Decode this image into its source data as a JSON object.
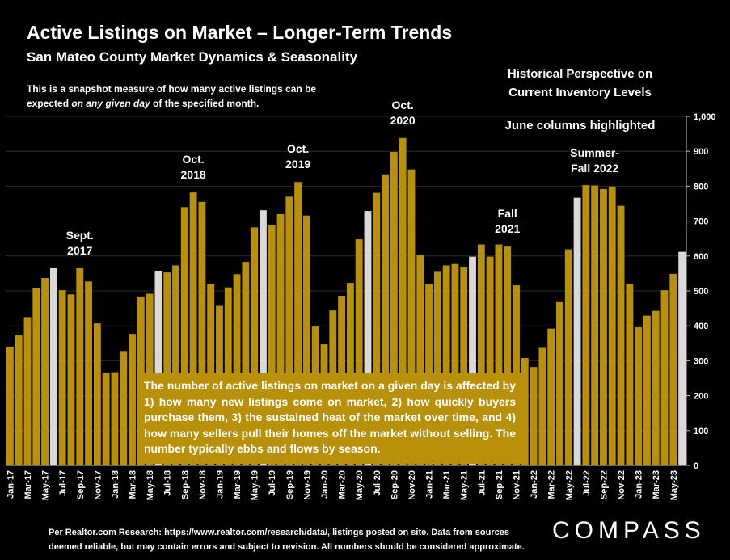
{
  "header": {
    "title": "Active Listings on Market – Longer-Term Trends",
    "subtitle": "San Mateo County Market Dynamics & Seasonality",
    "note_pre": "This is a snapshot measure of how many active listings can be expected ",
    "note_em": "on any given day",
    "note_post": " of the specified month."
  },
  "side_notes": {
    "perspective_1": "Historical Perspective on",
    "perspective_2": "Current Inventory Levels",
    "june": "June columns highlighted"
  },
  "annotations": [
    {
      "line1": "Sept.",
      "line2": "2017",
      "index": 8
    },
    {
      "line1": "Oct.",
      "line2": "2018",
      "index": 21
    },
    {
      "line1": "Oct.",
      "line2": "2019",
      "index": 33
    },
    {
      "line1": "Oct.",
      "line2": "2020",
      "index": 45
    },
    {
      "line1": "Fall",
      "line2": "2021",
      "index": 57
    },
    {
      "line1": "Summer-",
      "line2": "Fall 2022",
      "index": 67
    }
  ],
  "callout": "The number of active listings on market on a given day is affected by 1) how many new listings come on market, 2) how quickly buyers purchase them, 3) the sustained heat of the market over time, and 4) how many sellers pull their homes off the market without selling. The number typically ebbs and flows by season.",
  "footer": {
    "source_1": "Per Realtor.com Research:  https://www.realtor.com/research/data/, listings posted on site. Data from sources",
    "source_2": "deemed reliable, but may contain errors and subject to revision. All numbers should be considered approximate.",
    "logo": "COMPASS"
  },
  "colors": {
    "bar": "#b8900a",
    "highlight": "#d9d9d9",
    "background": "#000000"
  },
  "chart_data": {
    "type": "bar",
    "highlighted_month": "Jun",
    "ylim": [
      0,
      1000
    ],
    "yticks": [
      "0",
      "100",
      "200",
      "300",
      "400",
      "500",
      "600",
      "700",
      "800",
      "900",
      "1,000"
    ],
    "x_tick_labels": [
      "Jan-17",
      "Mar-17",
      "May-17",
      "Jul-17",
      "Sep-17",
      "Nov-17",
      "Jan-18",
      "Mar-18",
      "May-18",
      "Jul-18",
      "Sep-18",
      "Nov-18",
      "Jan-19",
      "Mar-19",
      "May-19",
      "Jul-19",
      "Sep-19",
      "Nov-19",
      "Jan-20",
      "Mar-20",
      "May-20",
      "Jul-20",
      "Sep-20",
      "Nov-20",
      "Jan-21",
      "Mar-21",
      "May-21",
      "Jul-21",
      "Sep-21",
      "Nov-21",
      "Jan-22",
      "Mar-22",
      "May-22",
      "Jul-22",
      "Sep-22",
      "Nov-22",
      "Jan-23",
      "Mar-23",
      "May-23"
    ],
    "categories": [
      "Jan-17",
      "Feb-17",
      "Mar-17",
      "Apr-17",
      "May-17",
      "Jun-17",
      "Jul-17",
      "Aug-17",
      "Sep-17",
      "Oct-17",
      "Nov-17",
      "Dec-17",
      "Jan-18",
      "Feb-18",
      "Mar-18",
      "Apr-18",
      "May-18",
      "Jun-18",
      "Jul-18",
      "Aug-18",
      "Sep-18",
      "Oct-18",
      "Nov-18",
      "Dec-18",
      "Jan-19",
      "Feb-19",
      "Mar-19",
      "Apr-19",
      "May-19",
      "Jun-19",
      "Jul-19",
      "Aug-19",
      "Sep-19",
      "Oct-19",
      "Nov-19",
      "Dec-19",
      "Jan-20",
      "Feb-20",
      "Mar-20",
      "Apr-20",
      "May-20",
      "Jun-20",
      "Jul-20",
      "Aug-20",
      "Sep-20",
      "Oct-20",
      "Nov-20",
      "Dec-20",
      "Jan-21",
      "Feb-21",
      "Mar-21",
      "Apr-21",
      "May-21",
      "Jun-21",
      "Jul-21",
      "Aug-21",
      "Sep-21",
      "Oct-21",
      "Nov-21",
      "Dec-21",
      "Jan-22",
      "Feb-22",
      "Mar-22",
      "Apr-22",
      "May-22",
      "Jun-22",
      "Jul-22",
      "Aug-22",
      "Sep-22",
      "Oct-22",
      "Nov-22",
      "Dec-22",
      "Jan-23",
      "Feb-23",
      "Mar-23",
      "Apr-23",
      "May-23",
      "Jun-23"
    ],
    "values": [
      340,
      373,
      425,
      507,
      537,
      565,
      502,
      490,
      565,
      527,
      407,
      265,
      267,
      328,
      377,
      484,
      492,
      558,
      553,
      573,
      740,
      782,
      755,
      519,
      457,
      510,
      548,
      583,
      682,
      731,
      688,
      720,
      770,
      812,
      716,
      398,
      347,
      444,
      486,
      523,
      648,
      729,
      781,
      834,
      898,
      938,
      848,
      602,
      520,
      557,
      573,
      577,
      567,
      598,
      633,
      598,
      633,
      627,
      516,
      308,
      282,
      337,
      392,
      468,
      619,
      767,
      803,
      802,
      792,
      799,
      744,
      519,
      396,
      429,
      443,
      502,
      549,
      612
    ]
  }
}
